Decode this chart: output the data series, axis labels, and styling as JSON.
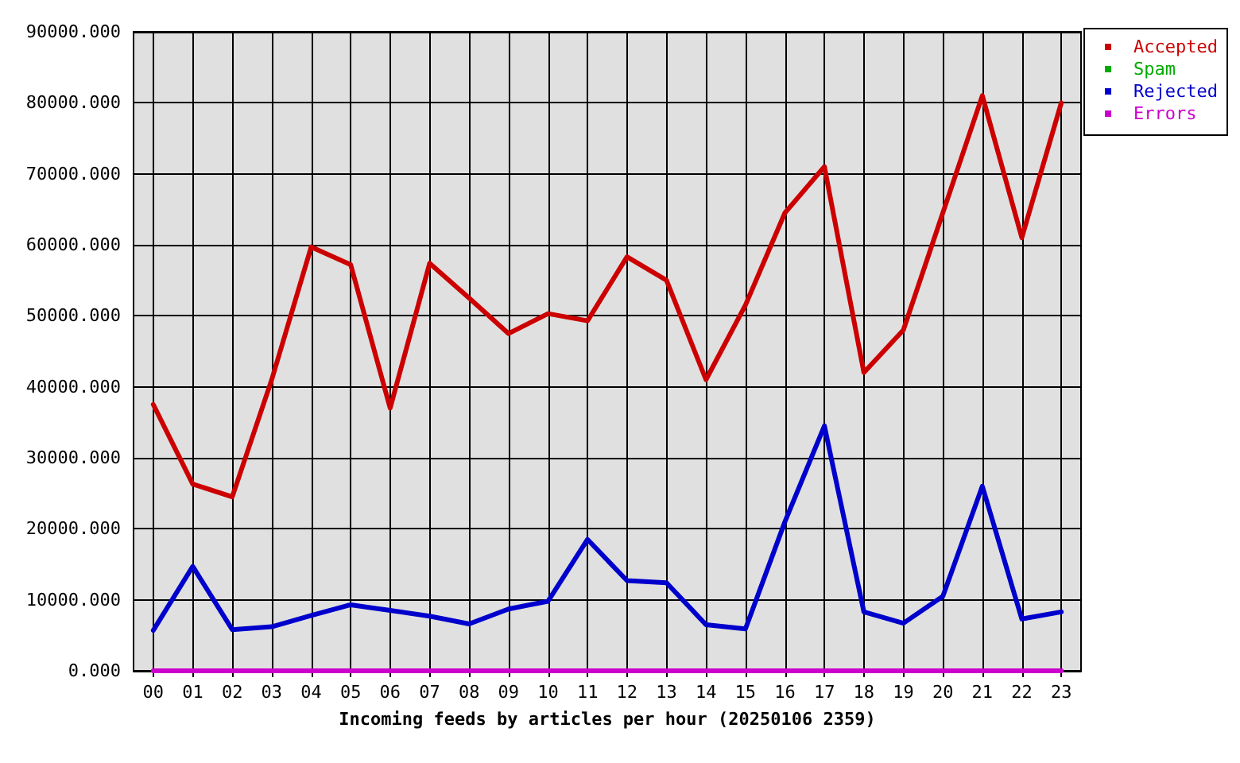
{
  "chart_data": {
    "type": "line",
    "xlabel": "Incoming feeds by articles per hour (20250106 2359)",
    "categories": [
      "00",
      "01",
      "02",
      "03",
      "04",
      "05",
      "06",
      "07",
      "08",
      "09",
      "10",
      "11",
      "12",
      "13",
      "14",
      "15",
      "16",
      "17",
      "18",
      "19",
      "20",
      "21",
      "22",
      "23"
    ],
    "series": [
      {
        "name": "Accepted",
        "color": "#cc0000",
        "values": [
          37500,
          26300,
          24500,
          41000,
          59700,
          57200,
          37000,
          57400,
          52500,
          47500,
          50300,
          49300,
          58300,
          55000,
          41000,
          51500,
          64500,
          71000,
          42000,
          48000,
          64500,
          81000,
          61000,
          80000
        ]
      },
      {
        "name": "Spam",
        "color": "#00aa00",
        "values": [
          null,
          null,
          null,
          null,
          null,
          null,
          null,
          null,
          null,
          null,
          null,
          null,
          null,
          null,
          null,
          null,
          null,
          null,
          null,
          null,
          null,
          null,
          null,
          null
        ]
      },
      {
        "name": "Rejected",
        "color": "#0000cc",
        "values": [
          5700,
          14700,
          5800,
          6200,
          7800,
          9300,
          8500,
          7700,
          6600,
          8700,
          9800,
          18500,
          12700,
          12400,
          6500,
          5900,
          21000,
          34500,
          8300,
          6700,
          10500,
          26000,
          7300,
          8300
        ]
      },
      {
        "name": "Errors",
        "color": "#cc00cc",
        "values": [
          0,
          0,
          0,
          0,
          0,
          0,
          0,
          0,
          0,
          0,
          0,
          0,
          0,
          0,
          0,
          0,
          0,
          0,
          0,
          0,
          0,
          0,
          0,
          0
        ]
      }
    ],
    "ylim": [
      0,
      90000
    ],
    "yticks": [
      {
        "value": 0,
        "label": "0.000"
      },
      {
        "value": 10000,
        "label": "10000.000"
      },
      {
        "value": 20000,
        "label": "20000.000"
      },
      {
        "value": 30000,
        "label": "30000.000"
      },
      {
        "value": 40000,
        "label": "40000.000"
      },
      {
        "value": 50000,
        "label": "50000.000"
      },
      {
        "value": 60000,
        "label": "60000.000"
      },
      {
        "value": 70000,
        "label": "70000.000"
      },
      {
        "value": 80000,
        "label": "80000.000"
      },
      {
        "value": 90000,
        "label": "90000.000"
      }
    ],
    "grid": true,
    "legend": "top right",
    "marker": "none",
    "line_style": "solid"
  }
}
